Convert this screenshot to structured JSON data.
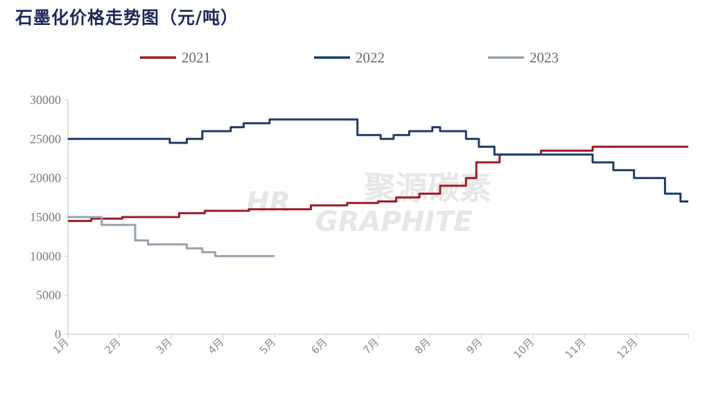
{
  "chart_data": {
    "type": "line",
    "title": "石墨化价格走势图（元/吨）",
    "categories": [
      "1月",
      "2月",
      "3月",
      "4月",
      "5月",
      "6月",
      "7月",
      "8月",
      "9月",
      "10月",
      "11月",
      "12月"
    ],
    "ylim": [
      0,
      30000
    ],
    "yticks": [
      0,
      5000,
      10000,
      15000,
      20000,
      25000,
      30000
    ],
    "xrange": [
      0,
      12
    ],
    "legend_position": "top",
    "grid": false,
    "series": [
      {
        "name": "2021",
        "color": "#9b1c24",
        "points": [
          [
            0,
            14500
          ],
          [
            0.45,
            14500
          ],
          [
            0.45,
            14800
          ],
          [
            1.05,
            14800
          ],
          [
            1.05,
            15000
          ],
          [
            2.15,
            15000
          ],
          [
            2.15,
            15500
          ],
          [
            2.65,
            15500
          ],
          [
            2.65,
            15800
          ],
          [
            3.5,
            15800
          ],
          [
            3.5,
            16000
          ],
          [
            4.7,
            16000
          ],
          [
            4.7,
            16500
          ],
          [
            5.4,
            16500
          ],
          [
            5.4,
            16800
          ],
          [
            6.0,
            16800
          ],
          [
            6.0,
            17000
          ],
          [
            6.35,
            17000
          ],
          [
            6.35,
            17500
          ],
          [
            6.8,
            17500
          ],
          [
            6.8,
            18000
          ],
          [
            7.2,
            18000
          ],
          [
            7.2,
            19000
          ],
          [
            7.7,
            19000
          ],
          [
            7.7,
            20000
          ],
          [
            7.9,
            20000
          ],
          [
            7.9,
            22000
          ],
          [
            8.35,
            22000
          ],
          [
            8.35,
            23000
          ],
          [
            9.15,
            23000
          ],
          [
            9.15,
            23500
          ],
          [
            10.15,
            23500
          ],
          [
            10.15,
            24000
          ],
          [
            12,
            24000
          ]
        ]
      },
      {
        "name": "2022",
        "color": "#1c3b66",
        "points": [
          [
            0,
            25000
          ],
          [
            1.97,
            25000
          ],
          [
            1.97,
            24500
          ],
          [
            2.3,
            24500
          ],
          [
            2.3,
            25000
          ],
          [
            2.6,
            25000
          ],
          [
            2.6,
            26000
          ],
          [
            3.15,
            26000
          ],
          [
            3.15,
            26500
          ],
          [
            3.4,
            26500
          ],
          [
            3.4,
            27000
          ],
          [
            3.9,
            27000
          ],
          [
            3.9,
            27500
          ],
          [
            5.6,
            27500
          ],
          [
            5.6,
            25500
          ],
          [
            6.05,
            25500
          ],
          [
            6.05,
            25000
          ],
          [
            6.3,
            25000
          ],
          [
            6.3,
            25500
          ],
          [
            6.6,
            25500
          ],
          [
            6.6,
            26000
          ],
          [
            7.05,
            26000
          ],
          [
            7.05,
            26500
          ],
          [
            7.2,
            26500
          ],
          [
            7.2,
            26000
          ],
          [
            7.7,
            26000
          ],
          [
            7.7,
            25000
          ],
          [
            7.95,
            25000
          ],
          [
            7.95,
            24000
          ],
          [
            8.25,
            24000
          ],
          [
            8.25,
            23000
          ],
          [
            10.15,
            23000
          ],
          [
            10.15,
            22000
          ],
          [
            10.55,
            22000
          ],
          [
            10.55,
            21000
          ],
          [
            10.95,
            21000
          ],
          [
            10.95,
            20000
          ],
          [
            11.55,
            20000
          ],
          [
            11.55,
            18000
          ],
          [
            11.85,
            18000
          ],
          [
            11.85,
            17000
          ],
          [
            12,
            17000
          ]
        ]
      },
      {
        "name": "2023",
        "color": "#97a3ae",
        "points": [
          [
            0,
            15000
          ],
          [
            0.65,
            15000
          ],
          [
            0.65,
            14000
          ],
          [
            1.3,
            14000
          ],
          [
            1.3,
            12000
          ],
          [
            1.55,
            12000
          ],
          [
            1.55,
            11500
          ],
          [
            2.3,
            11500
          ],
          [
            2.3,
            11000
          ],
          [
            2.6,
            11000
          ],
          [
            2.6,
            10500
          ],
          [
            2.85,
            10500
          ],
          [
            2.85,
            10000
          ],
          [
            4.0,
            10000
          ]
        ]
      }
    ]
  },
  "watermark": {
    "brand_cn": "聚源碳素",
    "brand_en": "GRAPHITE",
    "logo": "HR"
  }
}
